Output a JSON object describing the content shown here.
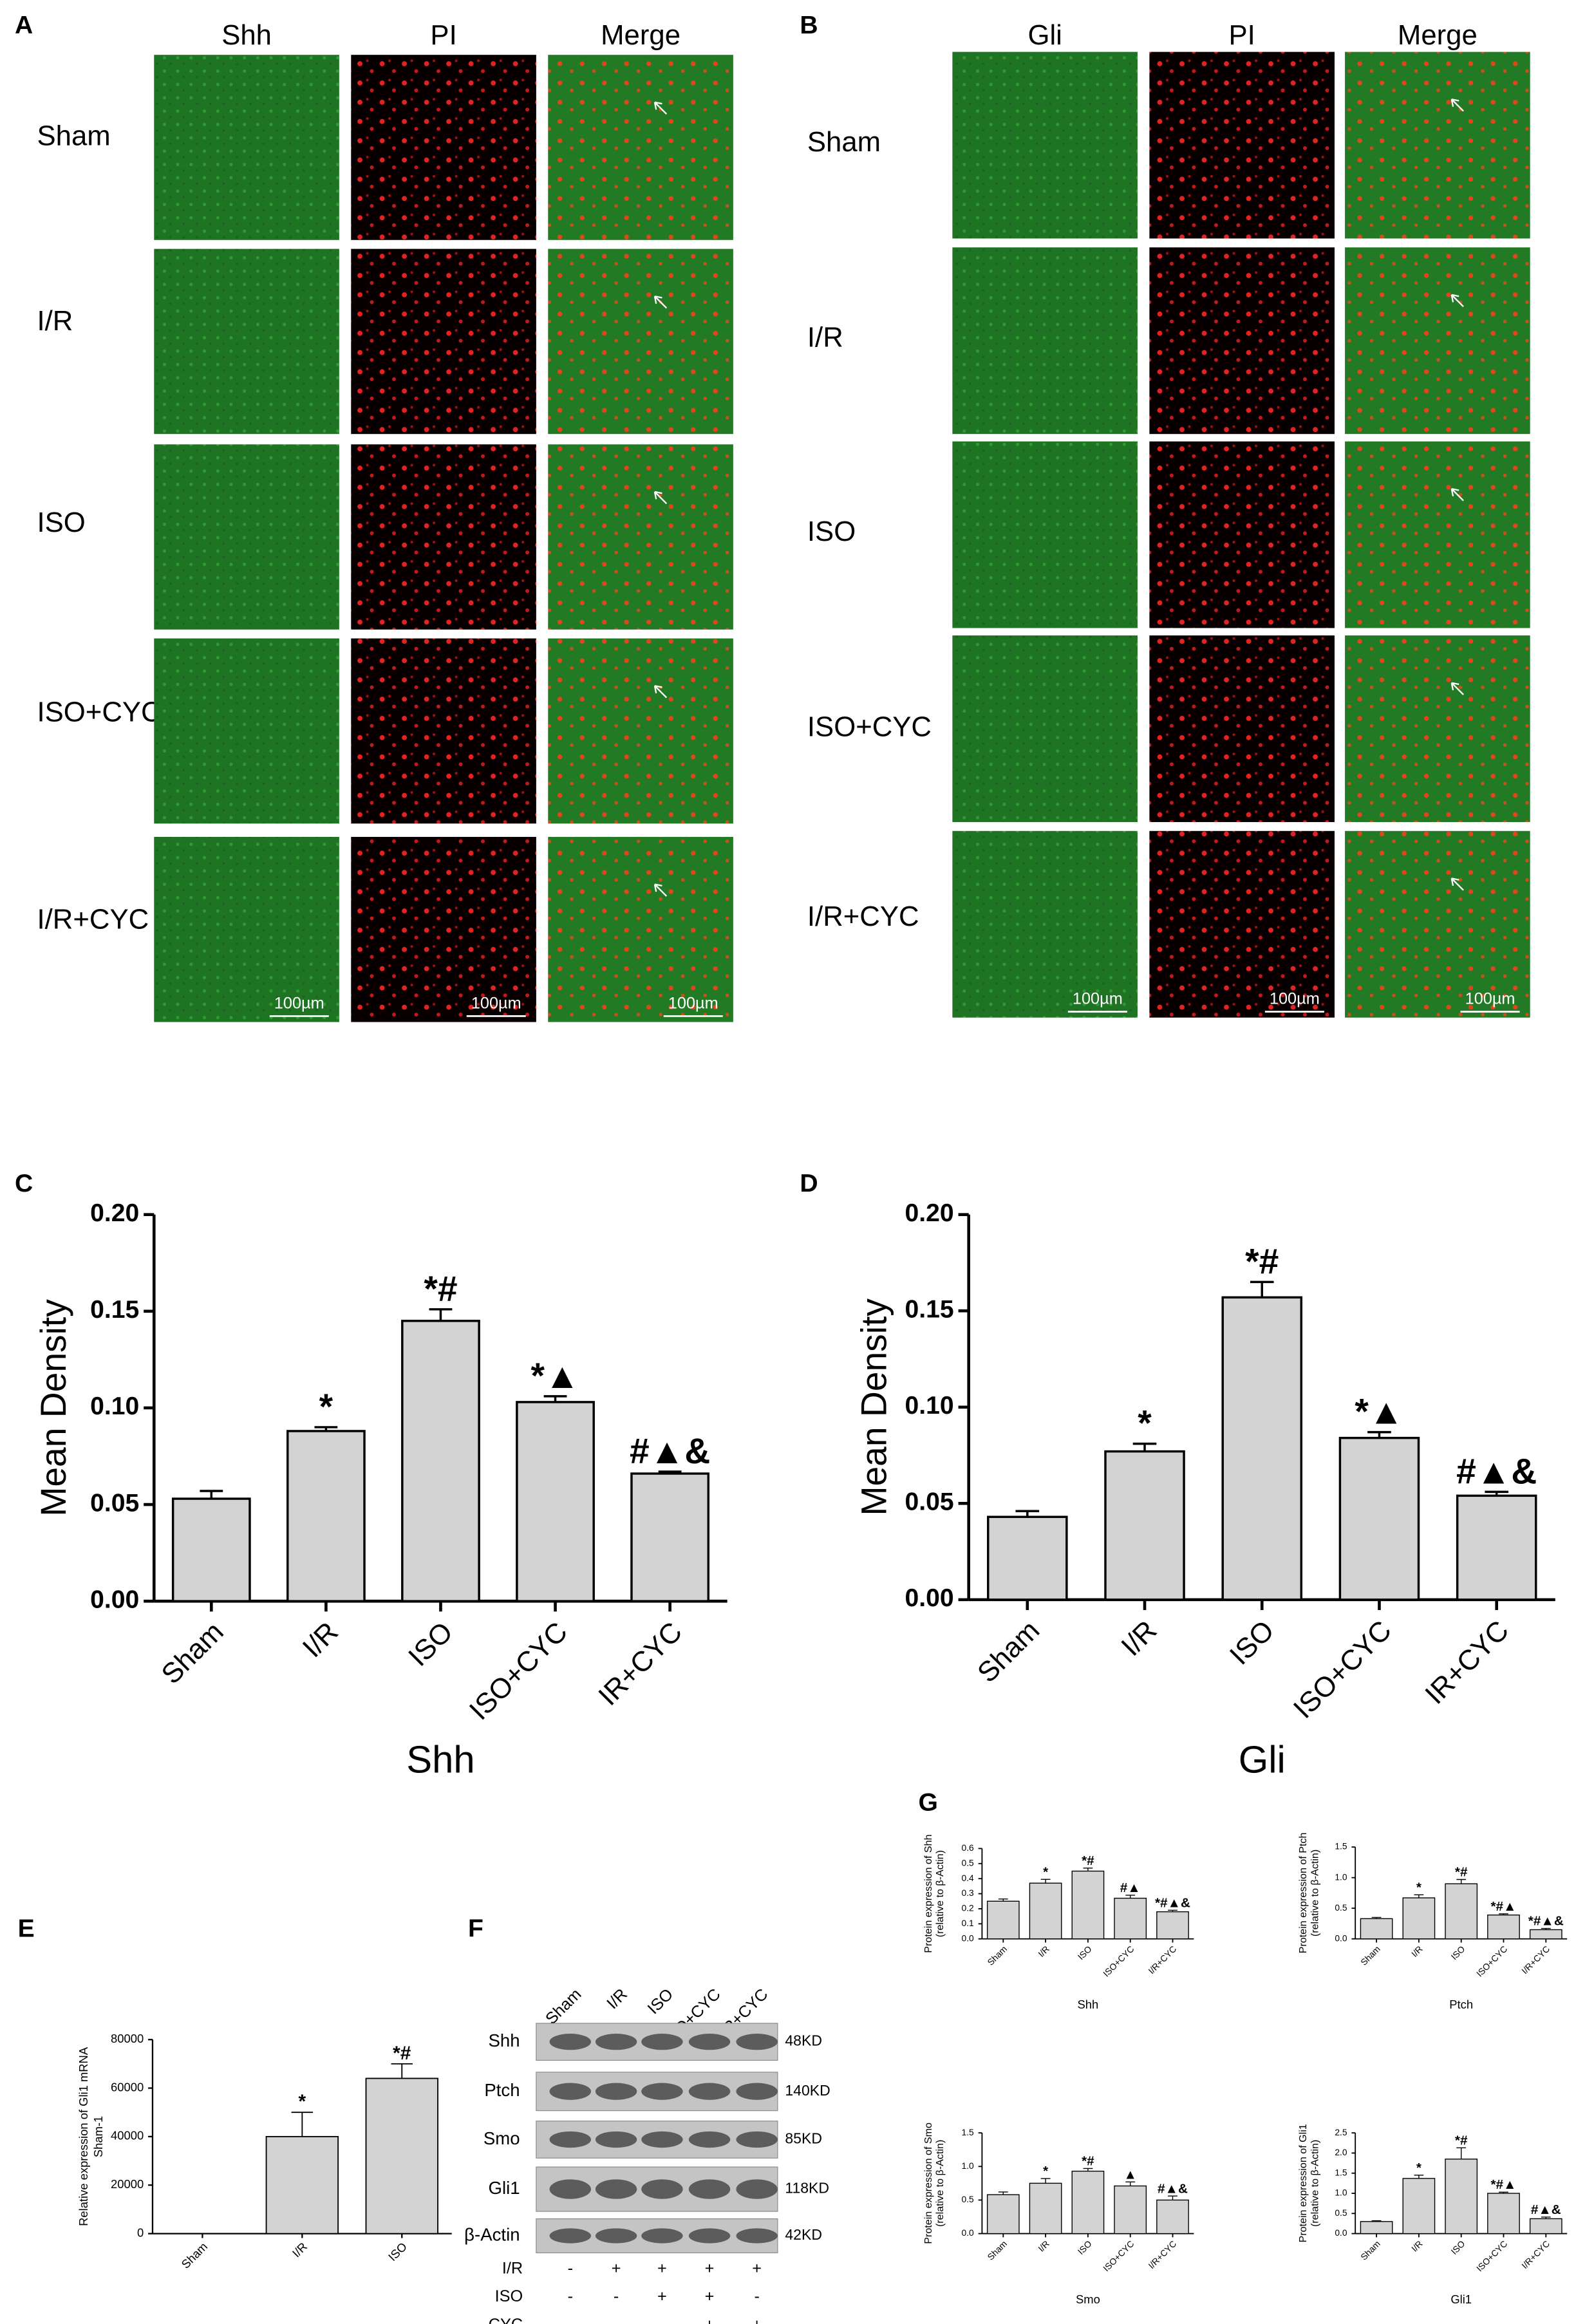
{
  "panel_a": {
    "label": "A",
    "columns": [
      "Shh",
      "PI",
      "Merge"
    ],
    "rows": [
      "Sham",
      "I/R",
      "ISO",
      "ISO+CYC",
      "I/R+CYC"
    ],
    "scale_bar": "100µm"
  },
  "panel_b": {
    "label": "B",
    "columns": [
      "Gli",
      "PI",
      "Merge"
    ],
    "rows": [
      "Sham",
      "I/R",
      "ISO",
      "ISO+CYC",
      "I/R+CYC"
    ],
    "scale_bar": "100µm"
  },
  "panel_f": {
    "label": "F",
    "lanes": [
      "Sham",
      "I/R",
      "ISO",
      "ISO+CYC",
      "I/R+CYC"
    ],
    "proteins": [
      "Shh",
      "Ptch",
      "Smo",
      "Gli1",
      "β-Actin"
    ],
    "sizes": [
      "48KD",
      "140KD",
      "85KD",
      "118KD",
      "42KD"
    ],
    "treatments": [
      {
        "name": "I/R",
        "signs": [
          "-",
          "+",
          "+",
          "+",
          "+"
        ]
      },
      {
        "name": "ISO",
        "signs": [
          "-",
          "-",
          "+",
          "+",
          "-"
        ]
      },
      {
        "name": "CYC",
        "signs": [
          "-",
          "-",
          "-",
          "+",
          "+"
        ]
      }
    ]
  },
  "panel_g": {
    "label": "G"
  },
  "chart_data": [
    {
      "type": "bar",
      "panel": "C",
      "color": "#d3d3d3",
      "categories": [
        "Sham",
        "I/R",
        "ISO",
        "ISO+CYC",
        "IR+CYC"
      ],
      "values": [
        0.053,
        0.088,
        0.145,
        0.103,
        0.066
      ],
      "errors": [
        0.004,
        0.002,
        0.006,
        0.003,
        0.001
      ],
      "annotations": [
        null,
        "*",
        "*#",
        "*▲",
        "#▲&"
      ],
      "ylabel": [
        "Mean Density"
      ],
      "xlabel": "Shh",
      "ylim": [
        0,
        0.2
      ],
      "yticks": [
        {
          "value": 0,
          "label": "0.00"
        },
        0.05,
        {
          "value": 0.1,
          "label": "0.10"
        },
        0.15,
        {
          "value": 0.2,
          "label": "0.20"
        }
      ]
    },
    {
      "type": "bar",
      "panel": "D",
      "color": "#d3d3d3",
      "categories": [
        "Sham",
        "I/R",
        "ISO",
        "ISO+CYC",
        "IR+CYC"
      ],
      "values": [
        0.043,
        0.077,
        0.157,
        0.084,
        0.054
      ],
      "errors": [
        0.003,
        0.004,
        0.008,
        0.003,
        0.002
      ],
      "annotations": [
        null,
        "*",
        "*#",
        "*▲",
        "#▲&"
      ],
      "ylabel": [
        "Mean Density"
      ],
      "xlabel": "Gli",
      "ylim": [
        0,
        0.2
      ],
      "yticks": [
        {
          "value": 0,
          "label": "0.00"
        },
        0.05,
        {
          "value": 0.1,
          "label": "0.10"
        },
        0.15,
        {
          "value": 0.2,
          "label": "0.20"
        }
      ]
    },
    {
      "type": "bar",
      "panel": "E",
      "color": "#d3d3d3",
      "categories": [
        "Sham",
        "I/R",
        "ISO"
      ],
      "values": [
        0,
        40000,
        64000
      ],
      "errors": [
        0,
        10000,
        6000
      ],
      "annotations": [
        null,
        "*",
        "*#"
      ],
      "ylabel": [
        "Relative expression of Gli1 mRNA",
        "Sham-1"
      ],
      "ylim": [
        0,
        80000
      ],
      "yticks": [
        0,
        20000,
        40000,
        60000,
        80000
      ]
    },
    {
      "type": "bar",
      "color": "#d3d3d3",
      "categories": [
        "Sham",
        "I/R",
        "ISO",
        "ISO+CYC",
        "I/R+CYC"
      ],
      "values": [
        0.25,
        0.37,
        0.45,
        0.27,
        0.18
      ],
      "errors": [
        0.015,
        0.025,
        0.02,
        0.02,
        0.01
      ],
      "annotations": [
        null,
        "*",
        "*#",
        "#▲",
        "*#▲&"
      ],
      "ylabel": [
        "Protein expression of Shh",
        "(relative to β-Actin)"
      ],
      "xlabel": "Shh",
      "ylim": [
        0,
        0.6
      ],
      "yticks": [
        {
          "value": 0,
          "label": "0.0"
        },
        0.1,
        0.2,
        0.3,
        0.4,
        0.5,
        0.6
      ]
    },
    {
      "type": "bar",
      "color": "#d3d3d3",
      "categories": [
        "Sham",
        "I/R",
        "ISO",
        "ISO+CYC",
        "I/R+CYC"
      ],
      "values": [
        0.33,
        0.67,
        0.9,
        0.39,
        0.15
      ],
      "errors": [
        0.02,
        0.05,
        0.07,
        0.02,
        0.02
      ],
      "annotations": [
        null,
        "*",
        "*#",
        "*#▲",
        "*#▲&"
      ],
      "ylabel": [
        "Protein expression of Ptch",
        "(relative to β-Actin)"
      ],
      "xlabel": "Ptch",
      "ylim": [
        0,
        1.5
      ],
      "yticks": [
        {
          "value": 0,
          "label": "0.0"
        },
        0.5,
        {
          "value": 1,
          "label": "1.0"
        },
        1.5
      ]
    },
    {
      "type": "bar",
      "color": "#d3d3d3",
      "categories": [
        "Sham",
        "I/R",
        "ISO",
        "ISO+CYC",
        "I/R+CYC"
      ],
      "values": [
        0.58,
        0.75,
        0.93,
        0.71,
        0.5
      ],
      "errors": [
        0.04,
        0.07,
        0.04,
        0.06,
        0.06
      ],
      "annotations": [
        null,
        "*",
        "*#",
        "▲",
        "#▲&"
      ],
      "ylabel": [
        "Protein expression of Smo",
        "(relative to β-Actin)"
      ],
      "xlabel": "Smo",
      "ylim": [
        0,
        1.5
      ],
      "yticks": [
        {
          "value": 0,
          "label": "0.0"
        },
        0.5,
        {
          "value": 1,
          "label": "1.0"
        },
        1.5
      ]
    },
    {
      "type": "bar",
      "color": "#d3d3d3",
      "categories": [
        "Sham",
        "I/R",
        "ISO",
        "ISO+CYC",
        "I/R+CYC"
      ],
      "values": [
        0.3,
        1.37,
        1.85,
        1.0,
        0.37
      ],
      "errors": [
        0.02,
        0.08,
        0.28,
        0.03,
        0.04
      ],
      "annotations": [
        null,
        "*",
        "*#",
        "*#▲",
        "#▲&"
      ],
      "ylabel": [
        "Protein expression of Gli1",
        "(relative to β-Actin)"
      ],
      "xlabel": "Gli1",
      "ylim": [
        0,
        2.5
      ],
      "yticks": [
        {
          "value": 0,
          "label": "0.0"
        },
        0.5,
        {
          "value": 1,
          "label": "1.0"
        },
        1.5,
        {
          "value": 2,
          "label": "2.0"
        },
        2.5
      ]
    }
  ]
}
